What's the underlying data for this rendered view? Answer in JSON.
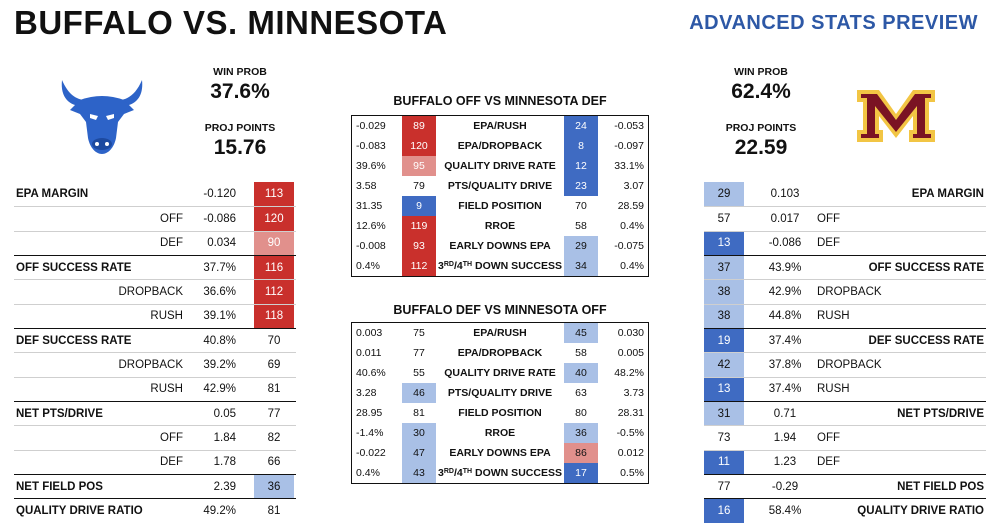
{
  "header": {
    "title": "BUFFALO VS. MINNESOTA",
    "subtitle": "ADVANCED STATS PREVIEW"
  },
  "buffalo": {
    "logo": "bull-head-icon",
    "win_prob_label": "WIN PROB",
    "win_prob": "37.6%",
    "proj_points_label": "PROJ POINTS",
    "proj_points": "15.76",
    "rows": [
      {
        "kind": "main",
        "label": "EPA MARGIN",
        "value": "-0.120",
        "rank": "113",
        "color": "#c9302c",
        "text": "#ffffff"
      },
      {
        "kind": "sub",
        "label": "OFF",
        "value": "-0.086",
        "rank": "120",
        "color": "#c9302c",
        "text": "#ffffff"
      },
      {
        "kind": "sub",
        "label": "DEF",
        "value": "0.034",
        "rank": "90",
        "color": "#e1908c",
        "text": "#ffffff"
      },
      {
        "kind": "main",
        "label": "OFF SUCCESS RATE",
        "value": "37.7%",
        "rank": "116",
        "color": "#c9302c",
        "text": "#ffffff"
      },
      {
        "kind": "sub",
        "label": "DROPBACK",
        "value": "36.6%",
        "rank": "112",
        "color": "#c9302c",
        "text": "#ffffff"
      },
      {
        "kind": "sub",
        "label": "RUSH",
        "value": "39.1%",
        "rank": "118",
        "color": "#c9302c",
        "text": "#ffffff"
      },
      {
        "kind": "main",
        "label": "DEF SUCCESS RATE",
        "value": "40.8%",
        "rank": "70",
        "color": "",
        "text": "#111111"
      },
      {
        "kind": "sub",
        "label": "DROPBACK",
        "value": "39.2%",
        "rank": "69",
        "color": "",
        "text": "#111111"
      },
      {
        "kind": "sub",
        "label": "RUSH",
        "value": "42.9%",
        "rank": "81",
        "color": "",
        "text": "#111111"
      },
      {
        "kind": "main",
        "label": "NET PTS/DRIVE",
        "value": "0.05",
        "rank": "77",
        "color": "",
        "text": "#111111"
      },
      {
        "kind": "sub",
        "label": "OFF",
        "value": "1.84",
        "rank": "82",
        "color": "",
        "text": "#111111"
      },
      {
        "kind": "sub",
        "label": "DEF",
        "value": "1.78",
        "rank": "66",
        "color": "",
        "text": "#111111"
      },
      {
        "kind": "main",
        "label": "NET FIELD POS",
        "value": "2.39",
        "rank": "36",
        "color": "#a9c0e6",
        "text": "#111111"
      },
      {
        "kind": "main",
        "label": "QUALITY DRIVE RATIO",
        "value": "49.2%",
        "rank": "81",
        "color": "",
        "text": "#111111"
      }
    ]
  },
  "minnesota": {
    "logo": "minnesota-m-icon",
    "win_prob_label": "WIN PROB",
    "win_prob": "62.4%",
    "proj_points_label": "PROJ POINTS",
    "proj_points": "22.59",
    "rows": [
      {
        "kind": "main",
        "label": "EPA MARGIN",
        "value": "0.103",
        "rank": "29",
        "color": "#a9c0e6",
        "text": "#111111"
      },
      {
        "kind": "sub",
        "label": "OFF",
        "value": "0.017",
        "rank": "57",
        "color": "",
        "text": "#111111"
      },
      {
        "kind": "sub",
        "label": "DEF",
        "value": "-0.086",
        "rank": "13",
        "color": "#3f6bc2",
        "text": "#ffffff"
      },
      {
        "kind": "main",
        "label": "OFF SUCCESS RATE",
        "value": "43.9%",
        "rank": "37",
        "color": "#a9c0e6",
        "text": "#111111"
      },
      {
        "kind": "sub",
        "label": "DROPBACK",
        "value": "42.9%",
        "rank": "38",
        "color": "#a9c0e6",
        "text": "#111111"
      },
      {
        "kind": "sub",
        "label": "RUSH",
        "value": "44.8%",
        "rank": "38",
        "color": "#a9c0e6",
        "text": "#111111"
      },
      {
        "kind": "main",
        "label": "DEF SUCCESS RATE",
        "value": "37.4%",
        "rank": "19",
        "color": "#3f6bc2",
        "text": "#ffffff"
      },
      {
        "kind": "sub",
        "label": "DROPBACK",
        "value": "37.8%",
        "rank": "42",
        "color": "#a9c0e6",
        "text": "#111111"
      },
      {
        "kind": "sub",
        "label": "RUSH",
        "value": "37.4%",
        "rank": "13",
        "color": "#3f6bc2",
        "text": "#ffffff"
      },
      {
        "kind": "main",
        "label": "NET PTS/DRIVE",
        "value": "0.71",
        "rank": "31",
        "color": "#a9c0e6",
        "text": "#111111"
      },
      {
        "kind": "sub",
        "label": "OFF",
        "value": "1.94",
        "rank": "73",
        "color": "",
        "text": "#111111"
      },
      {
        "kind": "sub",
        "label": "DEF",
        "value": "1.23",
        "rank": "11",
        "color": "#3f6bc2",
        "text": "#ffffff"
      },
      {
        "kind": "main",
        "label": "NET FIELD POS",
        "value": "-0.29",
        "rank": "77",
        "color": "",
        "text": "#111111"
      },
      {
        "kind": "main",
        "label": "QUALITY DRIVE RATIO",
        "value": "58.4%",
        "rank": "16",
        "color": "#3f6bc2",
        "text": "#ffffff"
      }
    ]
  },
  "matchups": [
    {
      "title": "BUFFALO OFF VS MINNESOTA DEF",
      "rows": [
        {
          "v1": "-0.029",
          "r1": "89",
          "c1": "#c9302c",
          "t1": "#ffffff",
          "label": "EPA/RUSH",
          "r2": "24",
          "c2": "#3f6bc2",
          "t2": "#ffffff",
          "v2": "-0.053"
        },
        {
          "v1": "-0.083",
          "r1": "120",
          "c1": "#c9302c",
          "t1": "#ffffff",
          "label": "EPA/DROPBACK",
          "r2": "8",
          "c2": "#3f6bc2",
          "t2": "#ffffff",
          "v2": "-0.097"
        },
        {
          "v1": "39.6%",
          "r1": "95",
          "c1": "#e1908c",
          "t1": "#ffffff",
          "label": "QUALITY DRIVE RATE",
          "r2": "12",
          "c2": "#3f6bc2",
          "t2": "#ffffff",
          "v2": "33.1%"
        },
        {
          "v1": "3.58",
          "r1": "79",
          "c1": "",
          "t1": "#111111",
          "label": "PTS/QUALITY DRIVE",
          "r2": "23",
          "c2": "#3f6bc2",
          "t2": "#ffffff",
          "v2": "3.07"
        },
        {
          "v1": "31.35",
          "r1": "9",
          "c1": "#3f6bc2",
          "t1": "#ffffff",
          "label": "FIELD POSITION",
          "r2": "70",
          "c2": "",
          "t2": "#111111",
          "v2": "28.59"
        },
        {
          "v1": "12.6%",
          "r1": "119",
          "c1": "#c9302c",
          "t1": "#ffffff",
          "label": "RROE",
          "r2": "58",
          "c2": "",
          "t2": "#111111",
          "v2": "0.4%"
        },
        {
          "v1": "-0.008",
          "r1": "93",
          "c1": "#c9302c",
          "t1": "#ffffff",
          "label": "EARLY DOWNS EPA",
          "r2": "29",
          "c2": "#a9c0e6",
          "t2": "#111111",
          "v2": "-0.075"
        },
        {
          "v1": "0.4%",
          "r1": "112",
          "c1": "#c9302c",
          "t1": "#ffffff",
          "label": "3RD/4TH DOWN SUCCESS",
          "r2": "34",
          "c2": "#a9c0e6",
          "t2": "#111111",
          "v2": "0.4%"
        }
      ]
    },
    {
      "title": "BUFFALO DEF VS MINNESOTA OFF",
      "rows": [
        {
          "v1": "0.003",
          "r1": "75",
          "c1": "",
          "t1": "#111111",
          "label": "EPA/RUSH",
          "r2": "45",
          "c2": "#a9c0e6",
          "t2": "#111111",
          "v2": "0.030"
        },
        {
          "v1": "0.011",
          "r1": "77",
          "c1": "",
          "t1": "#111111",
          "label": "EPA/DROPBACK",
          "r2": "58",
          "c2": "",
          "t2": "#111111",
          "v2": "0.005"
        },
        {
          "v1": "40.6%",
          "r1": "55",
          "c1": "",
          "t1": "#111111",
          "label": "QUALITY DRIVE RATE",
          "r2": "40",
          "c2": "#a9c0e6",
          "t2": "#111111",
          "v2": "48.2%"
        },
        {
          "v1": "3.28",
          "r1": "46",
          "c1": "#a9c0e6",
          "t1": "#111111",
          "label": "PTS/QUALITY DRIVE",
          "r2": "63",
          "c2": "",
          "t2": "#111111",
          "v2": "3.73"
        },
        {
          "v1": "28.95",
          "r1": "81",
          "c1": "",
          "t1": "#111111",
          "label": "FIELD POSITION",
          "r2": "80",
          "c2": "",
          "t2": "#111111",
          "v2": "28.31"
        },
        {
          "v1": "-1.4%",
          "r1": "30",
          "c1": "#a9c0e6",
          "t1": "#111111",
          "label": "RROE",
          "r2": "36",
          "c2": "#a9c0e6",
          "t2": "#111111",
          "v2": "-0.5%"
        },
        {
          "v1": "-0.022",
          "r1": "47",
          "c1": "#a9c0e6",
          "t1": "#111111",
          "label": "EARLY DOWNS EPA",
          "r2": "86",
          "c2": "#e1908c",
          "t2": "#111111",
          "v2": "0.012"
        },
        {
          "v1": "0.4%",
          "r1": "43",
          "c1": "#a9c0e6",
          "t1": "#111111",
          "label": "3RD/4TH DOWN SUCCESS",
          "r2": "17",
          "c2": "#3f6bc2",
          "t2": "#ffffff",
          "v2": "0.5%"
        }
      ]
    }
  ]
}
